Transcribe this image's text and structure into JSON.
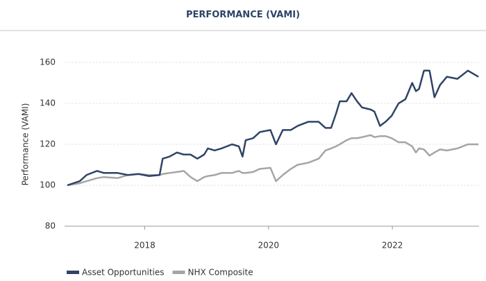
{
  "chart_data": {
    "type": "line",
    "title": "PERFORMANCE (VAMI)",
    "ylabel": "Performance (VAMI)",
    "x": [
      2016.75,
      2016.95,
      2017.06,
      2017.23,
      2017.34,
      2017.56,
      2017.73,
      2017.9,
      2018.07,
      2018.24,
      2018.29,
      2018.4,
      2018.52,
      2018.63,
      2018.74,
      2018.85,
      2018.96,
      2019.02,
      2019.13,
      2019.24,
      2019.41,
      2019.52,
      2019.58,
      2019.63,
      2019.75,
      2019.86,
      2020.03,
      2020.12,
      2020.23,
      2020.36,
      2020.47,
      2020.64,
      2020.81,
      2020.92,
      2021.01,
      2021.09,
      2021.15,
      2021.26,
      2021.34,
      2021.43,
      2021.51,
      2021.65,
      2021.71,
      2021.8,
      2021.89,
      2021.99,
      2022.1,
      2022.21,
      2022.32,
      2022.38,
      2022.43,
      2022.51,
      2022.6,
      2022.68,
      2022.77,
      2022.88,
      2023.05,
      2023.22,
      2023.39
    ],
    "series": [
      {
        "name": "Asset Opportunities",
        "color": "#2e4466",
        "values": [
          100,
          102,
          105,
          107,
          106,
          106,
          105,
          105.5,
          104.5,
          105,
          113,
          114,
          116,
          115,
          115,
          113,
          115,
          118,
          117,
          118,
          120,
          119,
          114,
          122,
          123,
          126,
          127,
          120,
          127,
          127,
          129,
          131,
          131,
          128,
          128,
          135,
          141,
          141,
          145,
          141,
          138,
          137,
          136,
          129,
          131,
          134,
          140,
          142,
          150,
          146,
          147,
          156,
          156,
          143,
          149,
          153,
          152,
          156,
          153
        ]
      },
      {
        "name": "NHX Composite",
        "color": "#a5a5a5",
        "values": [
          100,
          101,
          102,
          103.5,
          104,
          103.5,
          105,
          105.5,
          105,
          105,
          105.5,
          106,
          106.5,
          107,
          104,
          102,
          104,
          104.5,
          105,
          106,
          106,
          107,
          106,
          106,
          106.5,
          108,
          108.5,
          102,
          105,
          108,
          110,
          111,
          113,
          117,
          118,
          119,
          120,
          122,
          123,
          123,
          123.5,
          124.5,
          123.5,
          124,
          124,
          123,
          121,
          121,
          119,
          116,
          118,
          117.5,
          114.5,
          116,
          117.5,
          117,
          118,
          120,
          120
        ]
      }
    ],
    "xlim": [
      2016.75,
      2023.4
    ],
    "xticks": [
      2018,
      2020,
      2022
    ],
    "ylim": [
      80,
      160
    ],
    "yticks": [
      80,
      100,
      120,
      140,
      160
    ],
    "grid": true
  }
}
